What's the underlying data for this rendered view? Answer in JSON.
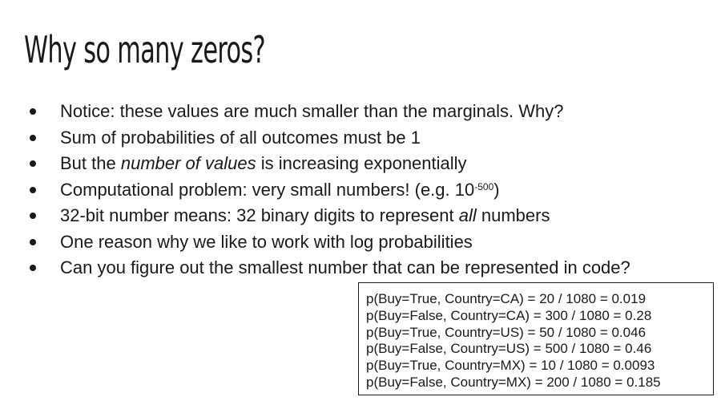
{
  "slide": {
    "title": "Why so many zeros?",
    "bullets": [
      {
        "parts": [
          "Notice: these values are much smaller than the marginals. Why?"
        ]
      },
      {
        "parts": [
          "Sum of probabilities of all outcomes must be 1"
        ]
      },
      {
        "pre": "But the ",
        "em": "number of values",
        "post": " is increasing exponentially"
      },
      {
        "pre": "Computational problem: very small numbers! (e.g. 10",
        "sup": "-500",
        "post": ")"
      },
      {
        "pre": "32-bit number means: 32 binary digits to represent ",
        "em": "all",
        "post": " numbers"
      },
      {
        "parts": [
          "One reason why we like to work with log probabilities"
        ]
      },
      {
        "parts": [
          "Can you figure out the smallest number that can be represented in code?"
        ]
      }
    ],
    "prob_box": [
      "p(Buy=True, Country=CA) = 20 / 1080 = 0.019",
      "p(Buy=False, Country=CA) = 300 / 1080 = 0.28",
      "p(Buy=True, Country=US) = 50 / 1080 = 0.046",
      "p(Buy=False, Country=US) = 500 / 1080 = 0.46",
      "p(Buy=True, Country=MX) = 10 / 1080 = 0.0093",
      "p(Buy=False, Country=MX) = 200 / 1080 = 0.185"
    ]
  }
}
